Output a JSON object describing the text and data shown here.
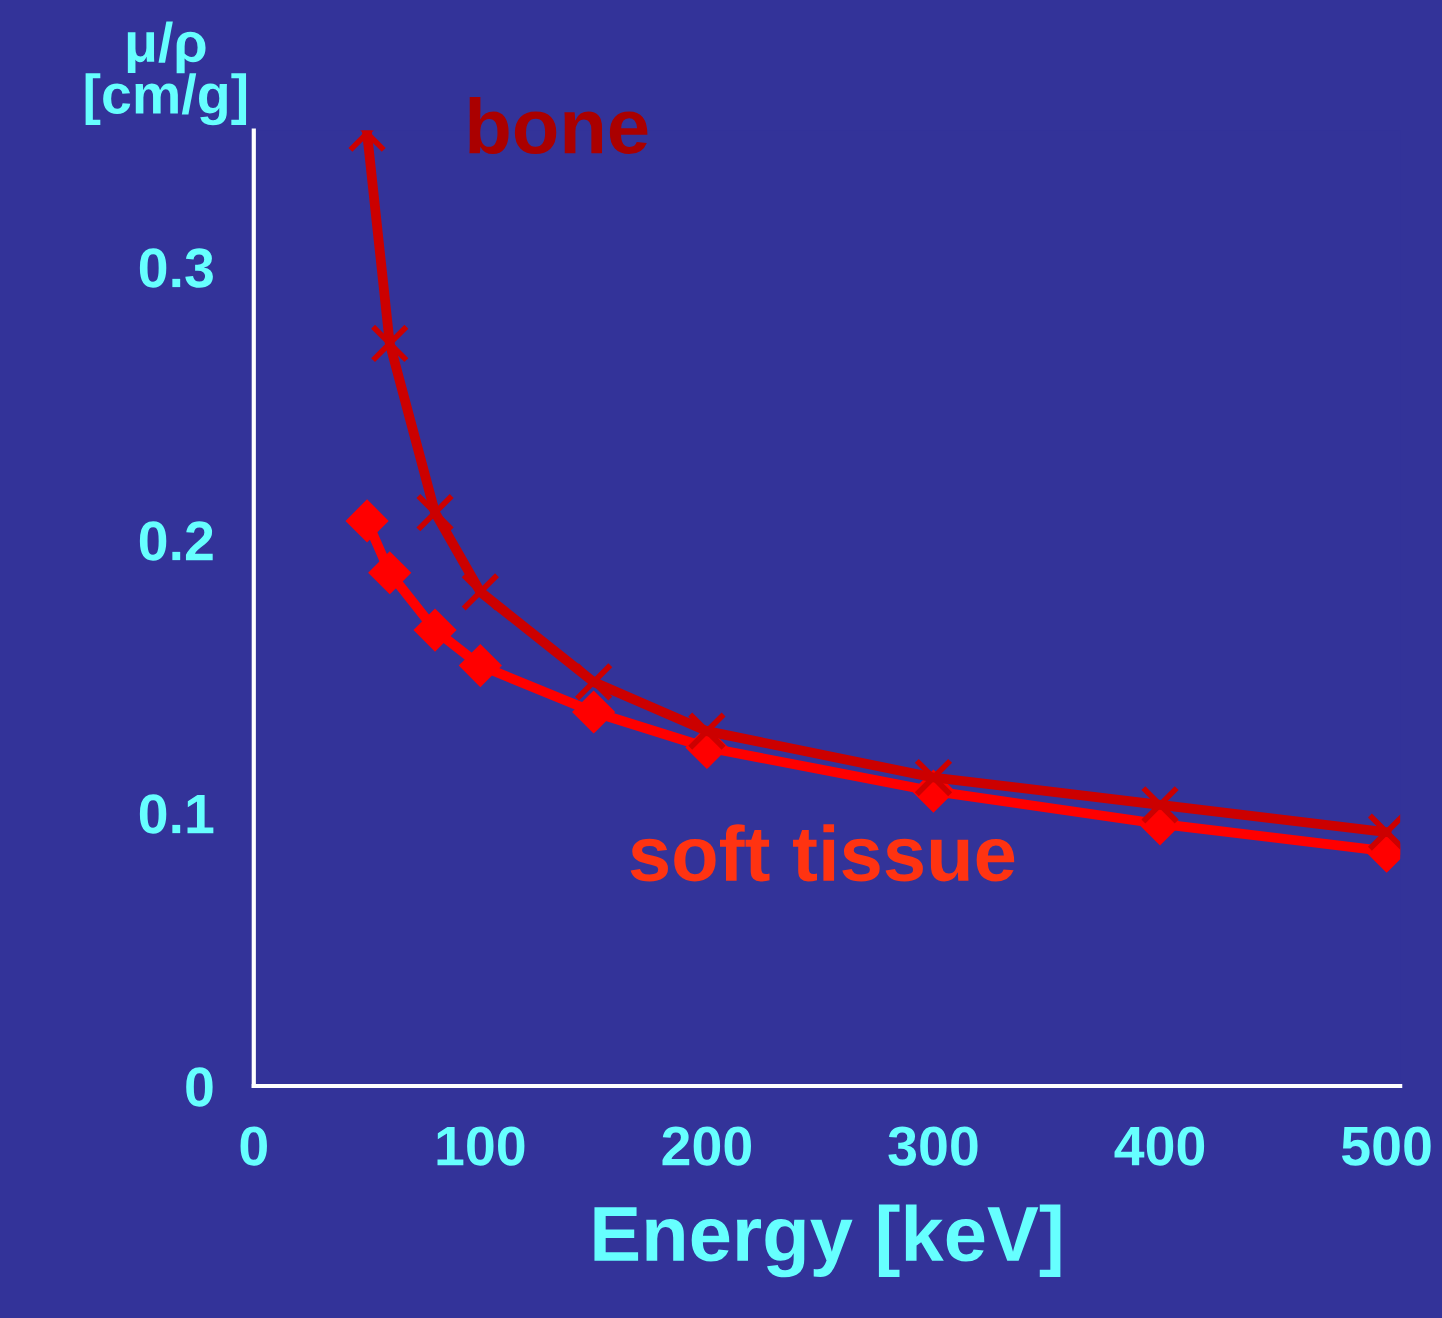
{
  "chart_data": {
    "type": "line",
    "xlabel": "Energy [keV]",
    "ylabel": "μ/ρ\n[cm/g]",
    "x": [
      50,
      60,
      80,
      100,
      150,
      200,
      300,
      400,
      500
    ],
    "series": [
      {
        "name": "bone",
        "color": "#cc0000",
        "marker": "cross",
        "values": [
          0.349,
          0.272,
          0.21,
          0.181,
          0.148,
          0.13,
          0.113,
          0.103,
          0.093
        ]
      },
      {
        "name": "soft tissue",
        "color": "#ff0000",
        "marker": "diamond",
        "values": [
          0.207,
          0.188,
          0.167,
          0.154,
          0.137,
          0.124,
          0.108,
          0.096,
          0.086
        ]
      }
    ],
    "xlim": [
      0,
      506
    ],
    "xticks": [
      0,
      100,
      200,
      300,
      400,
      500
    ],
    "ylim": [
      0,
      0.35
    ],
    "yticks": [
      0,
      0.1,
      0.2,
      0.3
    ],
    "grid": false,
    "legend": false,
    "line_style": "solid"
  }
}
